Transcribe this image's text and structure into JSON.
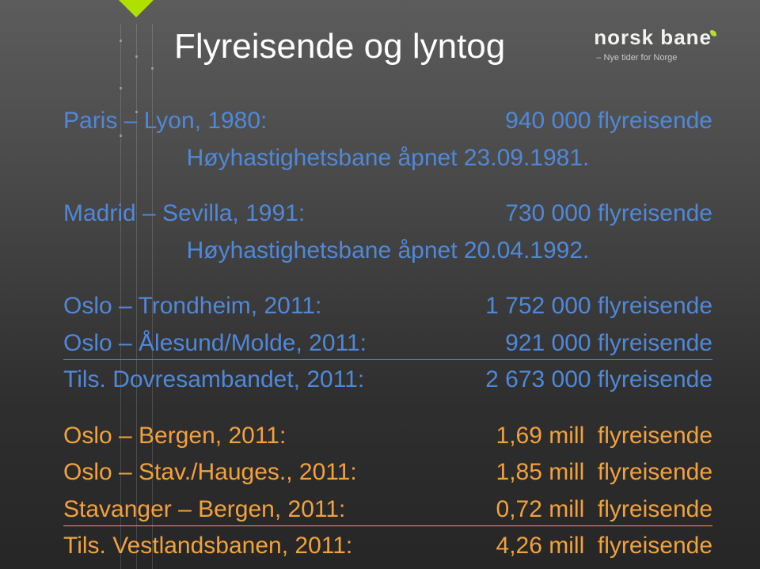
{
  "brand": {
    "name": "norsk bane",
    "tagline": "– Nye tider for Norge"
  },
  "title": "Flyreisende og lyntog",
  "colors": {
    "blue": "#5088d8",
    "orange": "#f2a23c",
    "accent_green": "#b0e000",
    "bg_top": "#5c5c5c",
    "bg_bottom": "#262626",
    "text": "#ffffff"
  },
  "groups": [
    {
      "rows": [
        {
          "route": "Paris – Lyon, 1980:",
          "value": "940 000 flyreisende",
          "color": "blue"
        }
      ],
      "note": "Høyhastighetsbane åpnet 23.09.1981."
    },
    {
      "rows": [
        {
          "route": "Madrid – Sevilla, 1991:",
          "value": "730 000 flyreisende",
          "color": "blue"
        }
      ],
      "note": "Høyhastighetsbane åpnet 20.04.1992."
    },
    {
      "rows": [
        {
          "route": "Oslo – Trondheim, 2011:",
          "value": "1 752 000 flyreisende",
          "color": "blue"
        },
        {
          "route": "Oslo – Ålesund/Molde, 2011:",
          "value": "921 000 flyreisende",
          "color": "blue",
          "underline": true
        },
        {
          "route": "Tils. Dovresambandet, 2011:",
          "value": "2 673 000 flyreisende",
          "color": "blue"
        }
      ]
    },
    {
      "rows": [
        {
          "route": "Oslo – Bergen, 2011:",
          "value": "1,69 mill",
          "tail": "flyreisende",
          "color": "orange"
        },
        {
          "route": "Oslo – Stav./Hauges., 2011:",
          "value": "1,85 mill",
          "tail": "flyreisende",
          "color": "orange"
        },
        {
          "route": "Stavanger – Bergen, 2011:",
          "value": "0,72 mill",
          "tail": "flyreisende",
          "color": "orange",
          "underline": true
        },
        {
          "route": "Tils. Vestlandsbanen, 2011:",
          "value": "4,26 mill",
          "tail": "flyreisende",
          "color": "orange"
        }
      ]
    }
  ]
}
